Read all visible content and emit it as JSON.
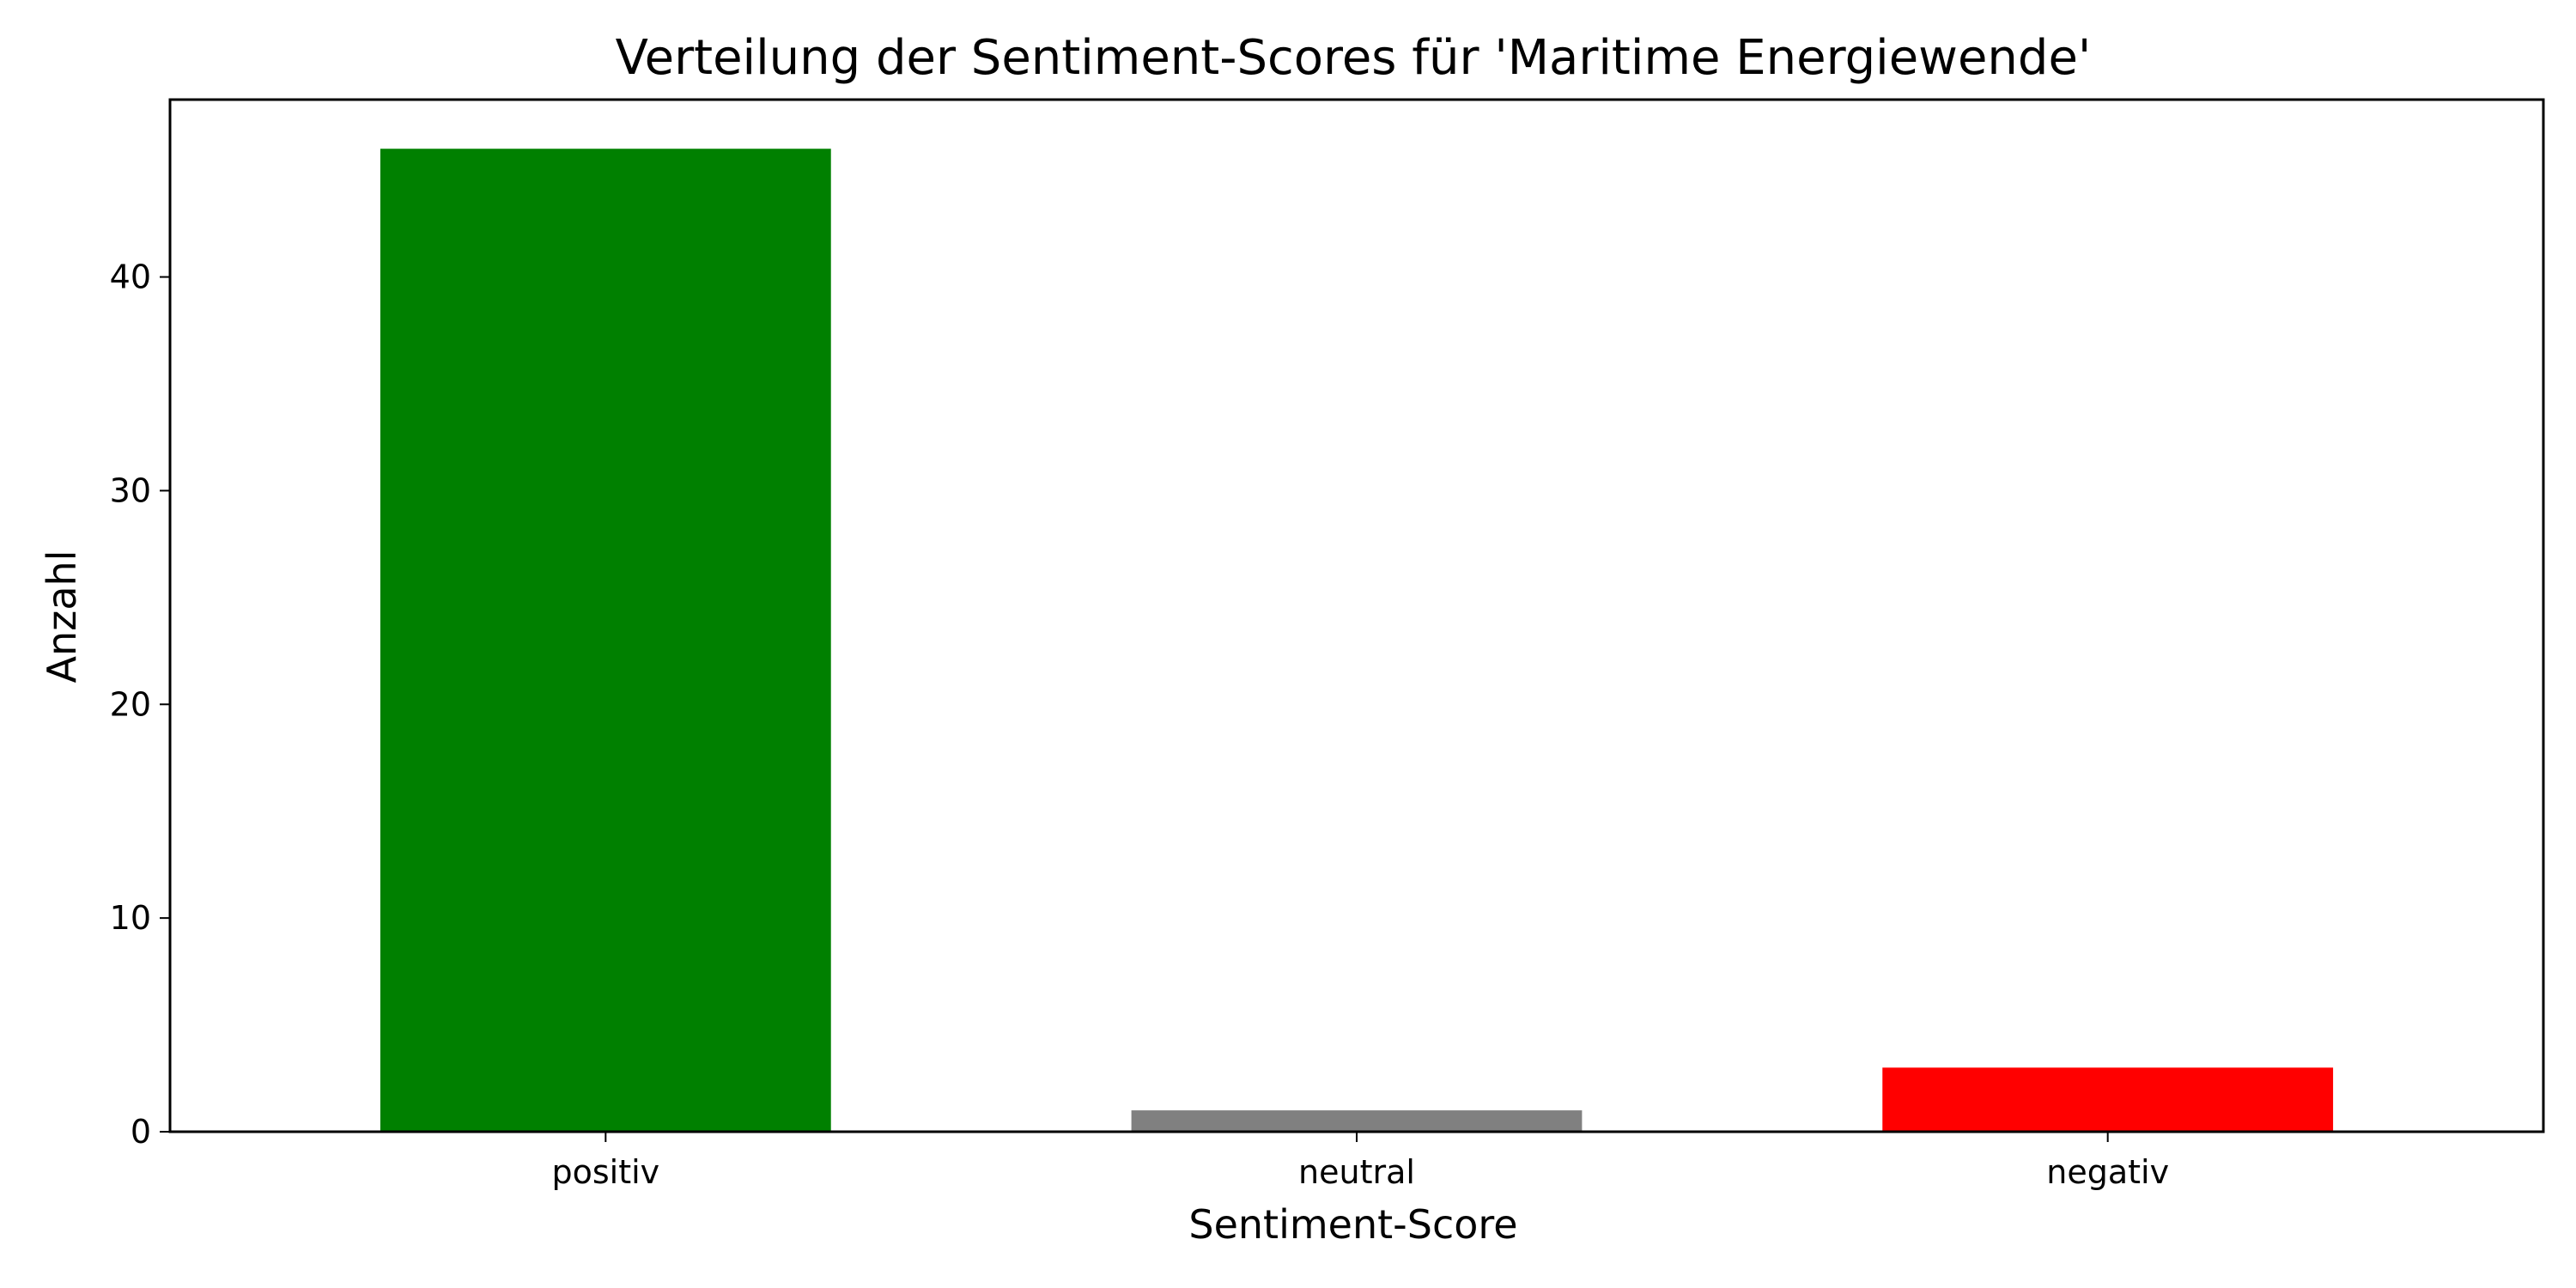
{
  "chart_data": {
    "type": "bar",
    "title": "Verteilung der Sentiment-Scores für 'Maritime Energiewende'",
    "xlabel": "Sentiment-Score",
    "ylabel": "Anzahl",
    "categories": [
      "positiv",
      "neutral",
      "negativ"
    ],
    "values": [
      46,
      1,
      3
    ],
    "colors": [
      "#008000",
      "#808080",
      "#ff0000"
    ],
    "ylim": [
      0,
      48.3
    ],
    "yticks": [
      0,
      10,
      20,
      30,
      40
    ],
    "grid": false,
    "baseline": "dashed line at 0"
  }
}
